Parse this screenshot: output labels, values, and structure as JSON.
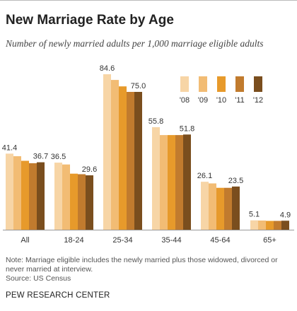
{
  "header": {
    "title": "New Marriage Rate by Age",
    "subtitle": "Number of newly married adults per 1,000 marriage eligible adults"
  },
  "chart_data": {
    "type": "bar",
    "title": "New Marriage Rate by Age",
    "subtitle": "Number of newly married adults per 1,000 marriage eligible adults",
    "categories": [
      "All",
      "18-24",
      "25-34",
      "35-44",
      "45-64",
      "65+"
    ],
    "series": [
      {
        "name": "'08",
        "color": "#f7d5a6",
        "values": [
          41.4,
          36.5,
          84.6,
          55.8,
          26.1,
          5.1
        ]
      },
      {
        "name": "'09",
        "color": "#f2bc74",
        "values": [
          40.0,
          35.5,
          81.5,
          51.5,
          25.2,
          5.0
        ]
      },
      {
        "name": "'10",
        "color": "#e79a2b",
        "values": [
          37.5,
          30.5,
          78.0,
          51.5,
          22.8,
          4.8
        ]
      },
      {
        "name": "'11",
        "color": "#c17b2e",
        "values": [
          36.2,
          30.2,
          75.0,
          51.5,
          22.8,
          4.8
        ]
      },
      {
        "name": "'12",
        "color": "#7a4e1e",
        "values": [
          36.7,
          29.6,
          75.0,
          51.8,
          23.5,
          4.9
        ]
      }
    ],
    "data_labels": [
      {
        "category": "All",
        "first": "41.4",
        "last": "36.7"
      },
      {
        "category": "18-24",
        "first": "36.5",
        "last": "29.6"
      },
      {
        "category": "25-34",
        "first": "84.6",
        "last": "75.0"
      },
      {
        "category": "35-44",
        "first": "55.8",
        "last": "51.8"
      },
      {
        "category": "45-64",
        "first": "26.1",
        "last": "23.5"
      },
      {
        "category": "65+",
        "first": "5.1",
        "last": "4.9"
      }
    ],
    "ylim": [
      0,
      100
    ],
    "grid": false,
    "legend": "top-right"
  },
  "notes": {
    "note": "Note: Marriage eligible includes the newly married plus those widowed, divorced or never married at interview.",
    "source": "Source: US Census",
    "org": "PEW RESEARCH CENTER"
  }
}
